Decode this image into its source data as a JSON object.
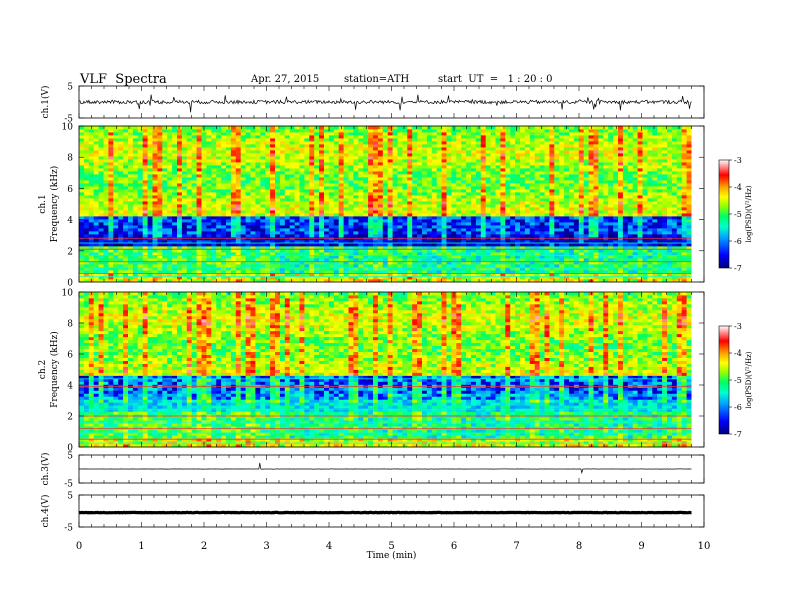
{
  "header": {
    "title": "VLF  Spectra",
    "date": "Apr. 27, 2015",
    "station": "station=ATH",
    "start": "start  UT  =   1 : 20 : 0"
  },
  "chart_data": [
    {
      "type": "line",
      "ylabel": "ch.1(V)",
      "ylim": [
        -5,
        5
      ],
      "yticks": [
        "5",
        "-5"
      ],
      "xlim": [
        0,
        10
      ],
      "x_data_end": 9.8,
      "baseline": 0,
      "description_note": ""
    },
    {
      "type": "heatmap",
      "ylabel": "ch.1\nFrequency  (kHz)",
      "ylim": [
        0,
        10
      ],
      "yticks": [
        "0",
        "2",
        "4",
        "6",
        "8",
        "10"
      ],
      "xlim": [
        0,
        10
      ],
      "x_data_end": 9.8,
      "colorbar": {
        "label": "log(PSD)(V²/Hz)",
        "ticks": [
          "-3",
          "-4",
          "-5",
          "-6",
          "-7"
        ],
        "range": [
          -7,
          -3
        ]
      },
      "regime_change_min": 3.05
    },
    {
      "type": "heatmap",
      "ylabel": "ch.2\nFrequency  (kHz)",
      "ylim": [
        0,
        10
      ],
      "yticks": [
        "0",
        "2",
        "4",
        "6",
        "8",
        "10"
      ],
      "xlim": [
        0,
        10
      ],
      "x_data_end": 9.8,
      "colorbar": {
        "label": "log(PSD)(V²/Hz)",
        "ticks": [
          "-3",
          "-4",
          "-5",
          "-6",
          "-7"
        ],
        "range": [
          -7,
          -3
        ]
      },
      "regime_change_min": 3.05
    },
    {
      "type": "line",
      "ylabel": "ch.3(V)",
      "ylim": [
        -5,
        5
      ],
      "yticks": [
        "5",
        "-5"
      ],
      "xlim": [
        0,
        10
      ],
      "x_data_end": 9.8,
      "baseline": 0
    },
    {
      "type": "line",
      "ylabel": "ch.4(V)",
      "ylim": [
        -5,
        5
      ],
      "yticks": [
        "5",
        "-5"
      ],
      "xlim": [
        0,
        10
      ],
      "x_data_end": 9.8,
      "baseline": -0.5
    }
  ],
  "xaxis": {
    "label": "Time  (min)",
    "ticks": [
      "0",
      "1",
      "2",
      "3",
      "4",
      "5",
      "6",
      "7",
      "8",
      "9",
      "10"
    ]
  },
  "colors": {
    "colormap": [
      "#00007f",
      "#0000ff",
      "#00a0ff",
      "#00ffd0",
      "#00ff60",
      "#a0ff00",
      "#ffff00",
      "#ffa000",
      "#ff0000",
      "#ffffff"
    ]
  }
}
